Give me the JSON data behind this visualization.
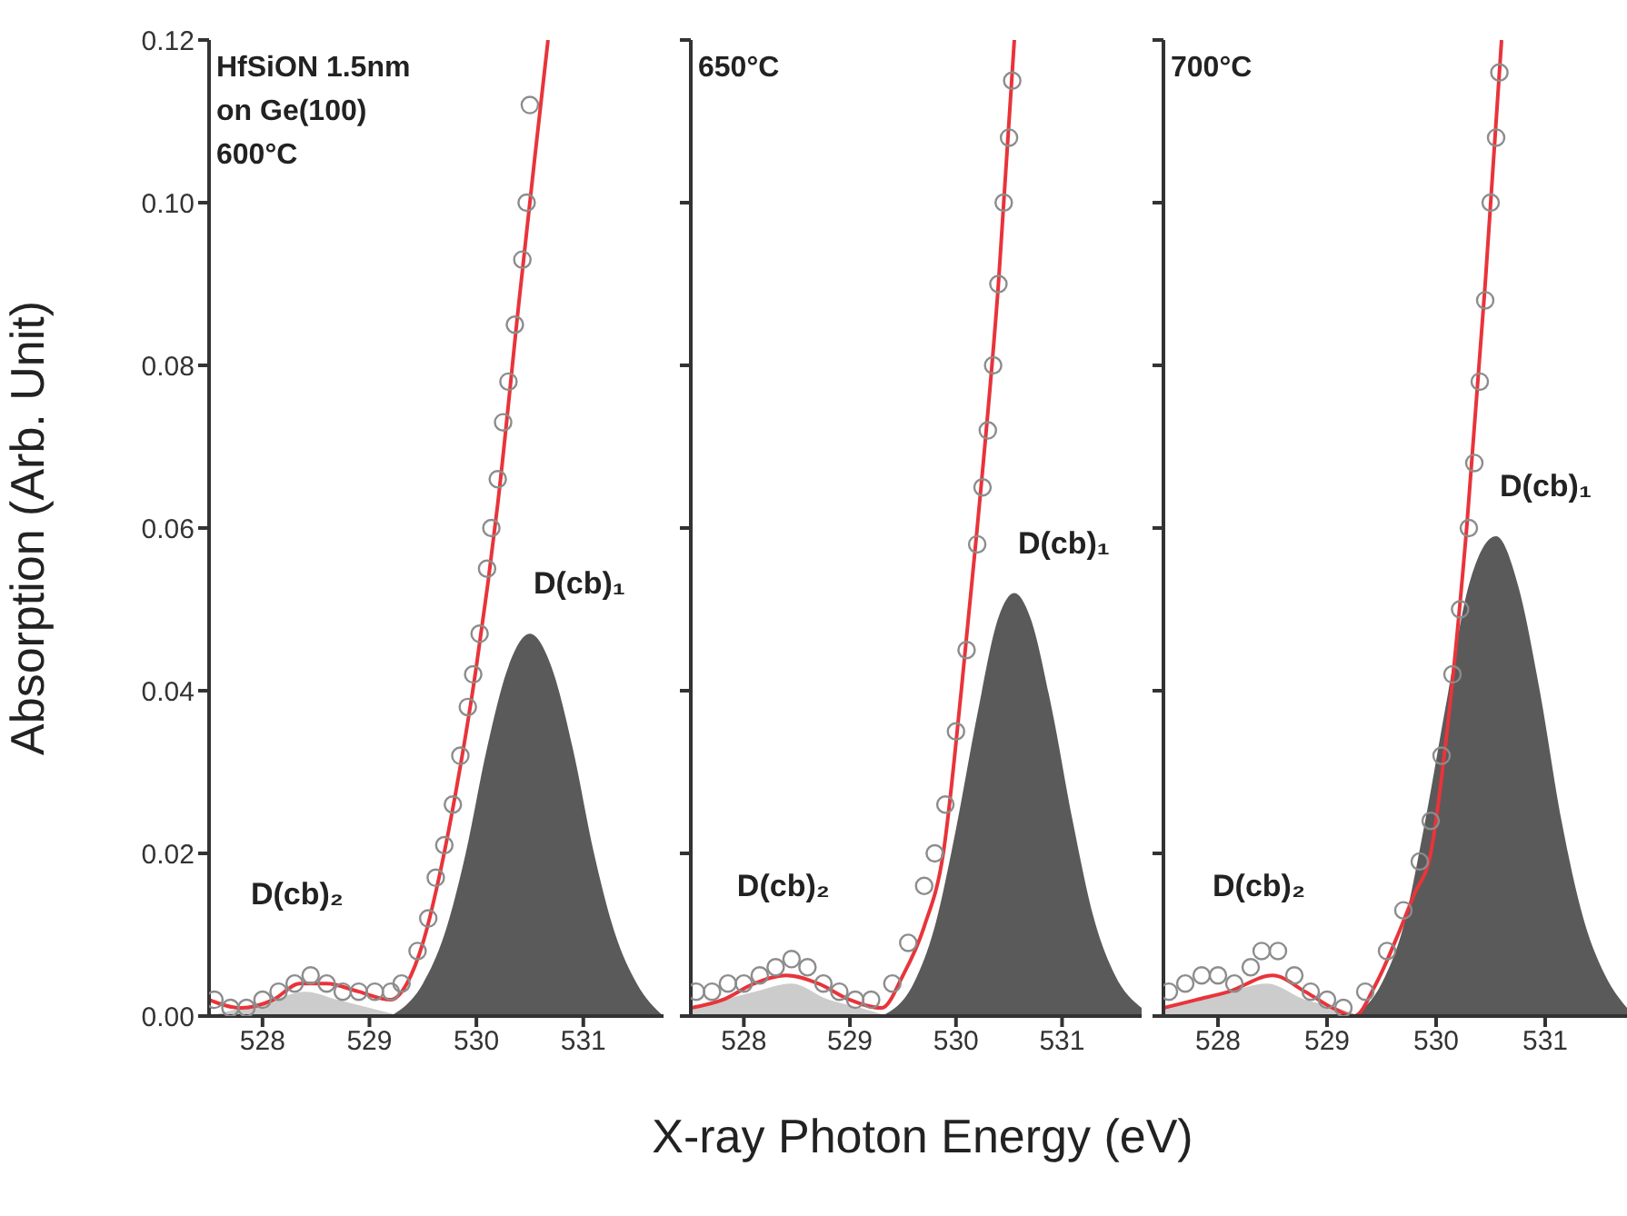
{
  "chart_data": [
    {
      "type": "line",
      "ylabel": "Absorption (Arb. Unit)",
      "annotations": [
        "HfSiON 1.5nm",
        "on Ge(100)",
        "600°C",
        {
          "text": "D(cb)₁",
          "x": 530.5,
          "y": 0.047
        },
        {
          "text": "D(cb)₂",
          "x": 528.4,
          "y": 0.003
        }
      ],
      "xlim": [
        527.5,
        531.75
      ],
      "xticks": [
        528,
        529,
        530,
        531
      ],
      "ylim": [
        0,
        0.12
      ],
      "yticks": [
        {
          "value": 0,
          "label": "0.00"
        },
        {
          "value": 0.02,
          "label": "0.02"
        },
        {
          "value": 0.04,
          "label": "0.04"
        },
        {
          "value": 0.06,
          "label": "0.06"
        },
        {
          "value": 0.08,
          "label": "0.08"
        },
        {
          "value": 0.1,
          "label": "0.10"
        },
        {
          "value": 0.12,
          "label": "0.12"
        }
      ],
      "series": [
        {
          "type": "area",
          "color": "#cccccc",
          "x": [
            527.5,
            527.8,
            528.1,
            528.4,
            528.7,
            529.0,
            529.3
          ],
          "values": [
            0,
            0.001,
            0.002,
            0.003,
            0.002,
            0.001,
            0
          ]
        },
        {
          "type": "area",
          "color": "#5a5a5a",
          "x": [
            529.2,
            529.5,
            529.7,
            529.9,
            530.1,
            530.3,
            530.5,
            530.7,
            530.9,
            531.1,
            531.3,
            531.5,
            531.75
          ],
          "values": [
            0,
            0.004,
            0.01,
            0.02,
            0.033,
            0.043,
            0.047,
            0.043,
            0.033,
            0.02,
            0.01,
            0.004,
            0
          ]
        },
        {
          "type": "scatter",
          "marker": "circle",
          "color": "#8c8c8c",
          "x": [
            527.55,
            527.7,
            527.85,
            528.0,
            528.15,
            528.3,
            528.45,
            528.6,
            528.75,
            528.9,
            529.05,
            529.2,
            529.3,
            529.45,
            529.55,
            529.62,
            529.7,
            529.78,
            529.85,
            529.92,
            529.97,
            530.03,
            530.1,
            530.14,
            530.2,
            530.25,
            530.3,
            530.36,
            530.43,
            530.47,
            530.5
          ],
          "values": [
            0.002,
            0.001,
            0.001,
            0.002,
            0.003,
            0.004,
            0.005,
            0.004,
            0.003,
            0.003,
            0.003,
            0.003,
            0.004,
            0.008,
            0.012,
            0.017,
            0.021,
            0.026,
            0.032,
            0.038,
            0.042,
            0.047,
            0.055,
            0.06,
            0.066,
            0.073,
            0.078,
            0.085,
            0.093,
            0.1,
            0.112
          ]
        },
        {
          "type": "line",
          "color": "#e8343a",
          "x": [
            527.5,
            527.8,
            528.1,
            528.35,
            528.6,
            528.9,
            529.2,
            529.35,
            529.5,
            529.65,
            529.8,
            530.0,
            530.2,
            530.4,
            530.55,
            530.67
          ],
          "values": [
            0.002,
            0.001,
            0.002,
            0.004,
            0.004,
            0.003,
            0.002,
            0.004,
            0.009,
            0.017,
            0.027,
            0.043,
            0.063,
            0.088,
            0.106,
            0.12
          ]
        }
      ]
    },
    {
      "type": "line",
      "xlabel": "X-ray Photon Energy (eV)",
      "tick_labels": "x",
      "annotations": [
        "650°C",
        {
          "text": "D(cb)₁",
          "x": 530.55,
          "y": 0.052
        },
        {
          "text": "D(cb)₂",
          "x": 528.45,
          "y": 0.004
        }
      ],
      "xlim": [
        527.5,
        531.75
      ],
      "xticks": [
        528,
        529,
        530,
        531
      ],
      "ylim": [
        0,
        0.12
      ],
      "yticks": [
        0,
        0.02,
        0.04,
        0.06,
        0.08,
        0.1,
        0.12
      ],
      "series": [
        {
          "type": "area",
          "color": "#cccccc",
          "x": [
            527.5,
            527.8,
            528.1,
            528.45,
            528.8,
            529.1,
            529.35
          ],
          "values": [
            0.001,
            0.002,
            0.003,
            0.004,
            0.002,
            0.001,
            0
          ]
        },
        {
          "type": "area",
          "color": "#5a5a5a",
          "x": [
            529.3,
            529.6,
            529.8,
            530.0,
            530.2,
            530.4,
            530.55,
            530.7,
            530.9,
            531.1,
            531.3,
            531.5,
            531.75
          ],
          "values": [
            0,
            0.004,
            0.011,
            0.023,
            0.037,
            0.049,
            0.052,
            0.049,
            0.038,
            0.024,
            0.012,
            0.005,
            0.001
          ]
        },
        {
          "type": "scatter",
          "marker": "circle",
          "color": "#8c8c8c",
          "x": [
            527.55,
            527.7,
            527.85,
            528.0,
            528.15,
            528.3,
            528.45,
            528.6,
            528.75,
            528.9,
            529.05,
            529.2,
            529.4,
            529.55,
            529.7,
            529.8,
            529.9,
            530.0,
            530.1,
            530.2,
            530.25,
            530.3,
            530.35,
            530.4,
            530.45,
            530.5,
            530.53
          ],
          "values": [
            0.003,
            0.003,
            0.004,
            0.004,
            0.005,
            0.006,
            0.007,
            0.006,
            0.004,
            0.003,
            0.002,
            0.002,
            0.004,
            0.009,
            0.016,
            0.02,
            0.026,
            0.035,
            0.045,
            0.058,
            0.065,
            0.072,
            0.08,
            0.09,
            0.1,
            0.108,
            0.115
          ]
        },
        {
          "type": "line",
          "color": "#e8343a",
          "x": [
            527.5,
            527.8,
            528.1,
            528.4,
            528.7,
            529.0,
            529.3,
            529.5,
            529.7,
            529.88,
            530.05,
            530.2,
            530.4,
            530.55
          ],
          "values": [
            0.001,
            0.002,
            0.004,
            0.005,
            0.004,
            0.002,
            0.001,
            0.005,
            0.011,
            0.02,
            0.04,
            0.06,
            0.09,
            0.12
          ]
        }
      ]
    },
    {
      "type": "line",
      "tick_labels": "x",
      "annotations": [
        "700°C",
        {
          "text": "D(cb)₁",
          "x": 530.55,
          "y": 0.059
        },
        {
          "text": "D(cb)₂",
          "x": 528.45,
          "y": 0.004
        }
      ],
      "xlim": [
        527.5,
        531.75
      ],
      "xticks": [
        528,
        529,
        530,
        531
      ],
      "ylim": [
        0,
        0.12
      ],
      "yticks": [
        0,
        0.02,
        0.04,
        0.06,
        0.08,
        0.1,
        0.12
      ],
      "series": [
        {
          "type": "area",
          "color": "#cccccc",
          "x": [
            527.5,
            527.8,
            528.1,
            528.45,
            528.8,
            529.1,
            529.3
          ],
          "values": [
            0.001,
            0.002,
            0.003,
            0.004,
            0.002,
            0.001,
            0
          ]
        },
        {
          "type": "area",
          "color": "#5a5a5a",
          "x": [
            529.25,
            529.5,
            529.7,
            529.9,
            530.1,
            530.3,
            530.55,
            530.75,
            530.95,
            531.15,
            531.35,
            531.55,
            531.75
          ],
          "values": [
            0,
            0.004,
            0.011,
            0.024,
            0.039,
            0.053,
            0.059,
            0.053,
            0.04,
            0.024,
            0.012,
            0.005,
            0.001
          ]
        },
        {
          "type": "scatter",
          "marker": "circle",
          "color": "#8c8c8c",
          "x": [
            527.55,
            527.7,
            527.85,
            528.0,
            528.15,
            528.3,
            528.4,
            528.55,
            528.7,
            528.85,
            529.0,
            529.15,
            529.35,
            529.55,
            529.7,
            529.85,
            529.95,
            530.05,
            530.15,
            530.22,
            530.3,
            530.35,
            530.4,
            530.45,
            530.5,
            530.55,
            530.58
          ],
          "values": [
            0.003,
            0.004,
            0.005,
            0.005,
            0.004,
            0.006,
            0.008,
            0.008,
            0.005,
            0.003,
            0.002,
            0.001,
            0.003,
            0.008,
            0.013,
            0.019,
            0.024,
            0.032,
            0.042,
            0.05,
            0.06,
            0.068,
            0.078,
            0.088,
            0.1,
            0.108,
            0.116
          ]
        },
        {
          "type": "line",
          "color": "#e8343a",
          "x": [
            527.5,
            527.8,
            528.1,
            528.5,
            528.8,
            529.05,
            529.25,
            529.45,
            529.65,
            529.8,
            529.95,
            530.1,
            530.28,
            530.45,
            530.6
          ],
          "values": [
            0.001,
            0.002,
            0.003,
            0.005,
            0.003,
            0.001,
            0,
            0.004,
            0.01,
            0.015,
            0.02,
            0.035,
            0.06,
            0.09,
            0.12
          ]
        }
      ]
    }
  ]
}
